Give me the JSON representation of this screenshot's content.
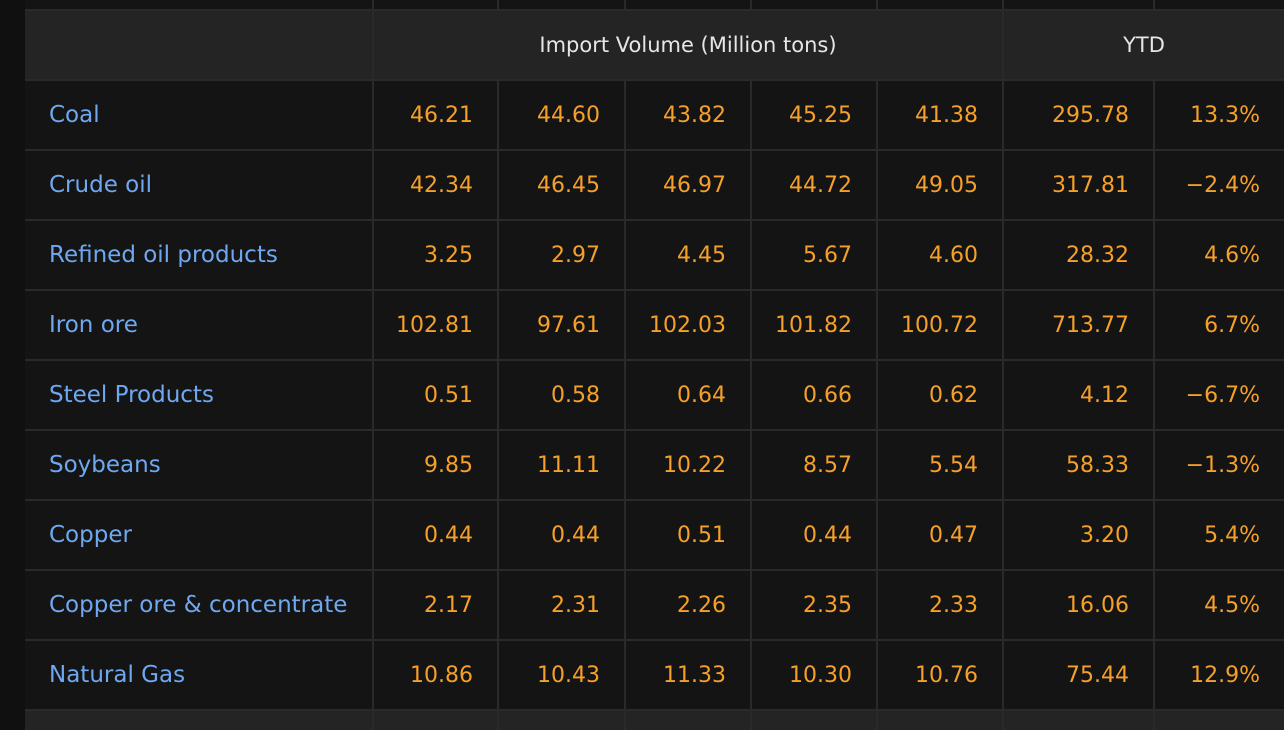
{
  "header": {
    "group_label": "Import Volume (Million tons)",
    "ytd_label": "YTD"
  },
  "rows": [
    {
      "name": "Coal",
      "values": [
        "46.21",
        "44.60",
        "43.82",
        "45.25",
        "41.38"
      ],
      "ytd": "295.78",
      "change": "13.3%"
    },
    {
      "name": "Crude oil",
      "values": [
        "42.34",
        "46.45",
        "46.97",
        "44.72",
        "49.05"
      ],
      "ytd": "317.81",
      "change": "−2.4%"
    },
    {
      "name": "Refined oil products",
      "values": [
        "3.25",
        "2.97",
        "4.45",
        "5.67",
        "4.60"
      ],
      "ytd": "28.32",
      "change": "4.6%"
    },
    {
      "name": "Iron ore",
      "values": [
        "102.81",
        "97.61",
        "102.03",
        "101.82",
        "100.72"
      ],
      "ytd": "713.77",
      "change": "6.7%"
    },
    {
      "name": "Steel Products",
      "values": [
        "0.51",
        "0.58",
        "0.64",
        "0.66",
        "0.62"
      ],
      "ytd": "4.12",
      "change": "−6.7%"
    },
    {
      "name": "Soybeans",
      "values": [
        "9.85",
        "11.11",
        "10.22",
        "8.57",
        "5.54"
      ],
      "ytd": "58.33",
      "change": "−1.3%"
    },
    {
      "name": "Copper",
      "values": [
        "0.44",
        "0.44",
        "0.51",
        "0.44",
        "0.47"
      ],
      "ytd": "3.20",
      "change": "5.4%"
    },
    {
      "name": "Copper ore & concentrate",
      "values": [
        "2.17",
        "2.31",
        "2.26",
        "2.35",
        "2.33"
      ],
      "ytd": "16.06",
      "change": "4.5%"
    },
    {
      "name": "Natural Gas",
      "values": [
        "10.86",
        "10.43",
        "11.33",
        "10.30",
        "10.76"
      ],
      "ytd": "75.44",
      "change": "12.9%"
    }
  ],
  "colors": {
    "label": "#6fa8f0",
    "value": "#f5a02a",
    "header_text": "#e6e6e6",
    "header_bg": "#242424"
  }
}
